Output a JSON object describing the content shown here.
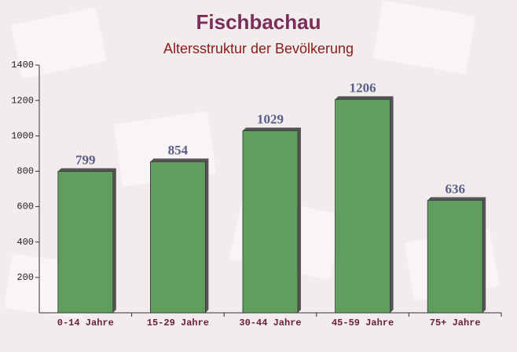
{
  "chart_data": {
    "type": "bar",
    "title": "Fischbachau",
    "subtitle": "Altersstruktur der Bevölkerung",
    "categories": [
      "0-14 Jahre",
      "15-29 Jahre",
      "30-44 Jahre",
      "45-59 Jahre",
      "75+ Jahre"
    ],
    "values": [
      799,
      854,
      1029,
      1206,
      636
    ],
    "color": "#5f9e5f",
    "ylim": [
      0,
      1400
    ],
    "yticks": [
      200,
      400,
      600,
      800,
      1000,
      1200,
      1400
    ],
    "grid": false
  }
}
